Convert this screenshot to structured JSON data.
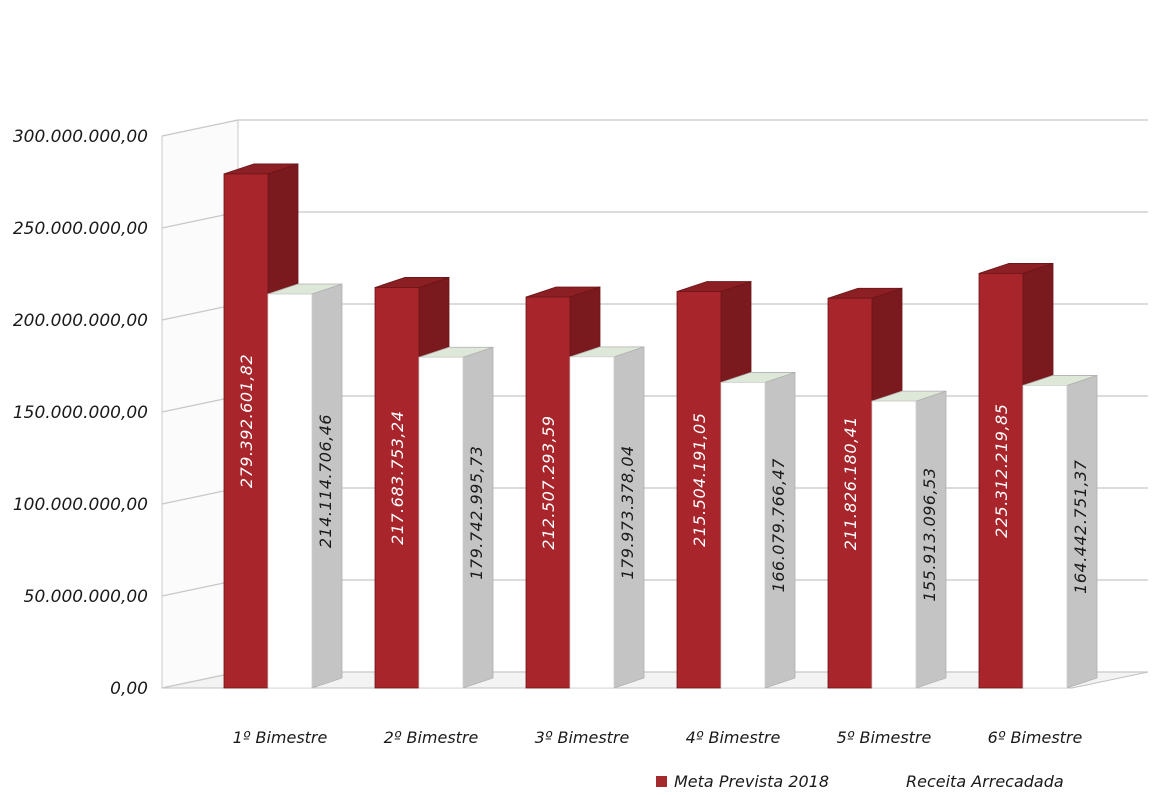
{
  "chart_data": {
    "type": "bar",
    "categories": [
      "1º Bimestre",
      "2º Bimestre",
      "3º Bimestre",
      "4º Bimestre",
      "5º Bimestre",
      "6º Bimestre"
    ],
    "series": [
      {
        "name": "Meta Prevista 2018",
        "color": "#a52a2e",
        "values": [
          279392601.82,
          217683753.24,
          212507293.59,
          215504191.05,
          211826180.41,
          225312219.85
        ],
        "labels": [
          "279.392.601,82",
          "217.683.753,24",
          "212.507.293,59",
          "215.504.191,05",
          "211.826.180,41",
          "225.312.219,85"
        ]
      },
      {
        "name": "Receita Arrecadada",
        "color": "#ffffff",
        "values": [
          214114706.46,
          179742995.73,
          179973378.04,
          166079766.47,
          155913096.53,
          164442751.37
        ],
        "labels": [
          "214.114.706,46",
          "179.742.995,73",
          "179.973.378,04",
          "166.079.766,47",
          "155.913.096,53",
          "164.442.751,37"
        ]
      }
    ],
    "yticks": [
      "0,00",
      "50.000.000,00",
      "100.000.000,00",
      "150.000.000,00",
      "200.000.000,00",
      "250.000.000,00",
      "300.000.000,00"
    ],
    "ylim": [
      0,
      300000000
    ],
    "grid": true,
    "legend": "bottom-right",
    "three_d": true
  }
}
